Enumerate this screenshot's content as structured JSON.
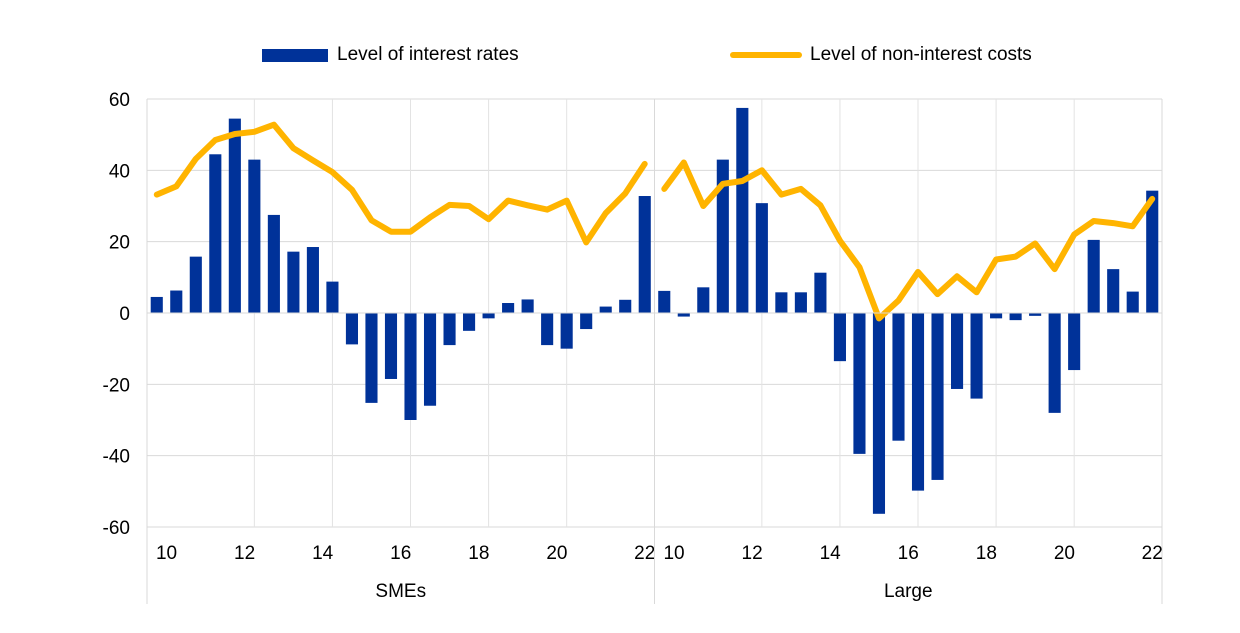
{
  "chart_data": {
    "type": "bar",
    "title": "",
    "xlabel": "",
    "ylabel": "",
    "ylim": [
      -60,
      60
    ],
    "yticks": [
      "60",
      "40",
      "20",
      "0",
      "-20",
      "-40",
      "-60"
    ],
    "grid": true,
    "legend_position": "top",
    "legend": {
      "bars_label": "Level of interest rates",
      "line_label": "Level of non-interest costs"
    },
    "colors": {
      "bars": "#003299",
      "line": "#FFB400"
    },
    "panels": [
      {
        "label": "SMEs",
        "xticks": [
          "10",
          "12",
          "14",
          "16",
          "18",
          "20",
          "22"
        ],
        "bars": [
          4.5,
          6.3,
          15.8,
          44.5,
          54.5,
          43.0,
          27.5,
          17.2,
          18.5,
          8.8,
          -8.8,
          -25.2,
          -18.5,
          -30.0,
          -26.0,
          -9.0,
          -5.0,
          -1.5,
          2.8,
          3.8,
          -9.0,
          -10.0,
          -4.5,
          1.8,
          3.7,
          32.8
        ],
        "line": [
          33.2,
          35.5,
          43.2,
          48.5,
          50.2,
          50.8,
          52.8,
          46.2,
          42.8,
          39.5,
          34.5,
          26.0,
          22.8,
          22.8,
          26.8,
          30.3,
          30.0,
          26.3,
          31.5,
          30.2,
          29.0,
          31.5,
          19.8,
          28.0,
          33.5,
          41.8
        ]
      },
      {
        "label": "Large",
        "xticks": [
          "10",
          "12",
          "14",
          "16",
          "18",
          "20",
          "22"
        ],
        "bars": [
          6.2,
          -1.0,
          7.2,
          43.0,
          57.5,
          30.8,
          5.8,
          5.8,
          11.3,
          -13.5,
          -39.5,
          -56.3,
          -35.8,
          -49.8,
          -46.8,
          -21.3,
          -24.0,
          -1.5,
          -2.0,
          -0.8,
          -28.0,
          -16.0,
          20.5,
          12.3,
          6.0,
          34.3
        ],
        "line": [
          34.8,
          42.2,
          30.0,
          36.2,
          37.0,
          40.0,
          33.2,
          34.8,
          30.2,
          20.3,
          12.8,
          -1.5,
          3.5,
          11.5,
          5.3,
          10.3,
          5.8,
          15.0,
          15.8,
          19.5,
          12.3,
          22.0,
          25.8,
          25.2,
          24.3,
          32.0
        ]
      }
    ]
  }
}
